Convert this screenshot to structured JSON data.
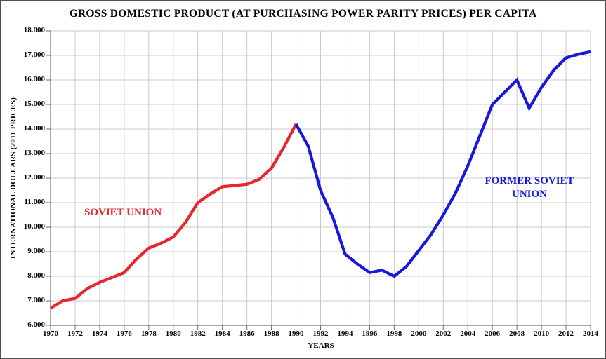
{
  "annotations": {
    "soviet_union": "SOVIET UNION",
    "former_line1": "FORMER SOVIET",
    "former_line2": "UNION"
  },
  "colors": {
    "soviet_union_line": "#e8262c",
    "former_soviet_union_line": "#1717dd",
    "grid": "#cbcbcb",
    "axis": "#6e6e6e",
    "text": "#000000"
  },
  "chart_data": {
    "type": "line",
    "title": "GROSS DOMESTIC PRODUCT (AT PURCHASING POWER PARITY PRICES) PER CAPITA",
    "xlabel": "YEARS",
    "ylabel": "INTERNATIONAL DOLLARS (2011 PRICES)",
    "xlim": [
      1970,
      2014
    ],
    "ylim": [
      6000,
      18000
    ],
    "grid": true,
    "legend_position": "inline-annotations",
    "x_ticks": [
      1970,
      1972,
      1974,
      1976,
      1978,
      1980,
      1982,
      1984,
      1986,
      1988,
      1990,
      1992,
      1994,
      1996,
      1998,
      2000,
      2002,
      2004,
      2006,
      2008,
      2010,
      2012,
      2014
    ],
    "y_ticks": [
      {
        "v": 6000,
        "label": "6.000"
      },
      {
        "v": 7000,
        "label": "7.000"
      },
      {
        "v": 8000,
        "label": "8.000"
      },
      {
        "v": 9000,
        "label": "9.000"
      },
      {
        "v": 10000,
        "label": "10.000"
      },
      {
        "v": 11000,
        "label": "11.000"
      },
      {
        "v": 12000,
        "label": "12.000"
      },
      {
        "v": 13000,
        "label": "13.000"
      },
      {
        "v": 14000,
        "label": "14.000"
      },
      {
        "v": 15000,
        "label": "15.000"
      },
      {
        "v": 16000,
        "label": "16.000"
      },
      {
        "v": 17000,
        "label": "17.000"
      },
      {
        "v": 18000,
        "label": "18.000"
      }
    ],
    "series": [
      {
        "name": "SOVIET UNION",
        "color": "#e8262c",
        "x": [
          1970,
          1971,
          1972,
          1973,
          1974,
          1975,
          1976,
          1977,
          1978,
          1979,
          1980,
          1981,
          1982,
          1983,
          1984,
          1985,
          1986,
          1987,
          1988,
          1989,
          1990
        ],
        "values": [
          6700,
          7000,
          7100,
          7500,
          7750,
          7950,
          8150,
          8700,
          9150,
          9350,
          9600,
          10200,
          11000,
          11350,
          11650,
          11700,
          11750,
          11950,
          12400,
          13250,
          14200
        ]
      },
      {
        "name": "FORMER SOVIET UNION",
        "color": "#1717dd",
        "x": [
          1990,
          1991,
          1992,
          1993,
          1994,
          1995,
          1996,
          1997,
          1998,
          1999,
          2000,
          2001,
          2002,
          2003,
          2004,
          2005,
          2006,
          2007,
          2008,
          2009,
          2010,
          2011,
          2012,
          2013,
          2014
        ],
        "values": [
          14200,
          13300,
          11500,
          10400,
          8900,
          8500,
          8150,
          8250,
          8000,
          8400,
          9050,
          9700,
          10500,
          11400,
          12500,
          13750,
          15000,
          15500,
          16000,
          14850,
          15700,
          16400,
          16900,
          17050,
          17150
        ]
      }
    ]
  }
}
